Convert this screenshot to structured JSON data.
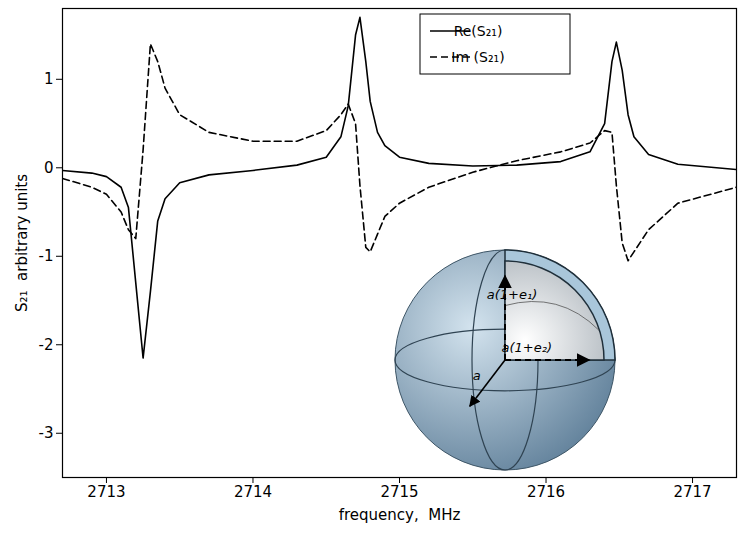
{
  "chart_data": {
    "type": "line",
    "x_label": "frequency,  MHz",
    "y_label": "S₂₁  arbitrary units",
    "x": [
      2712.7,
      2712.9,
      2713.0,
      2713.1,
      2713.15,
      2713.2,
      2713.25,
      2713.3,
      2713.35,
      2713.4,
      2713.5,
      2713.7,
      2714.0,
      2714.3,
      2714.5,
      2714.6,
      2714.65,
      2714.7,
      2714.73,
      2714.77,
      2714.8,
      2714.85,
      2714.9,
      2715.0,
      2715.2,
      2715.5,
      2715.8,
      2716.1,
      2716.3,
      2716.4,
      2716.45,
      2716.48,
      2716.52,
      2716.56,
      2716.6,
      2716.7,
      2716.9,
      2717.3
    ],
    "series": [
      {
        "name": "Re(S₂₁)",
        "color": "#000000",
        "line_style": "solid",
        "values": [
          -0.03,
          -0.06,
          -0.1,
          -0.22,
          -0.45,
          -1.3,
          -2.15,
          -1.4,
          -0.6,
          -0.35,
          -0.17,
          -0.08,
          -0.03,
          0.03,
          0.12,
          0.35,
          0.7,
          1.5,
          1.7,
          1.2,
          0.75,
          0.4,
          0.25,
          0.12,
          0.05,
          0.02,
          0.03,
          0.07,
          0.18,
          0.5,
          1.2,
          1.42,
          1.1,
          0.6,
          0.35,
          0.15,
          0.04,
          -0.02
        ]
      },
      {
        "name": "Im (S₂₁)",
        "color": "#000000",
        "line_style": "dashed",
        "values": [
          -0.12,
          -0.22,
          -0.3,
          -0.5,
          -0.7,
          -0.8,
          0.2,
          1.4,
          1.2,
          0.9,
          0.6,
          0.4,
          0.3,
          0.3,
          0.42,
          0.6,
          0.72,
          0.5,
          -0.2,
          -0.9,
          -0.95,
          -0.75,
          -0.55,
          -0.4,
          -0.22,
          -0.05,
          0.08,
          0.18,
          0.28,
          0.42,
          0.4,
          -0.2,
          -0.85,
          -1.05,
          -0.95,
          -0.7,
          -0.4,
          -0.22
        ]
      }
    ],
    "xlim": [
      2712.7,
      2717.3
    ],
    "xticks": [
      2713,
      2714,
      2715,
      2716,
      2717
    ],
    "ylim": [
      -3.5,
      1.8
    ],
    "yticks": [
      -3,
      -2,
      -1,
      0,
      1
    ],
    "legend": "upper center",
    "annotations": [
      "a(1+e₁)",
      "a(1+e₂)",
      "a"
    ]
  }
}
